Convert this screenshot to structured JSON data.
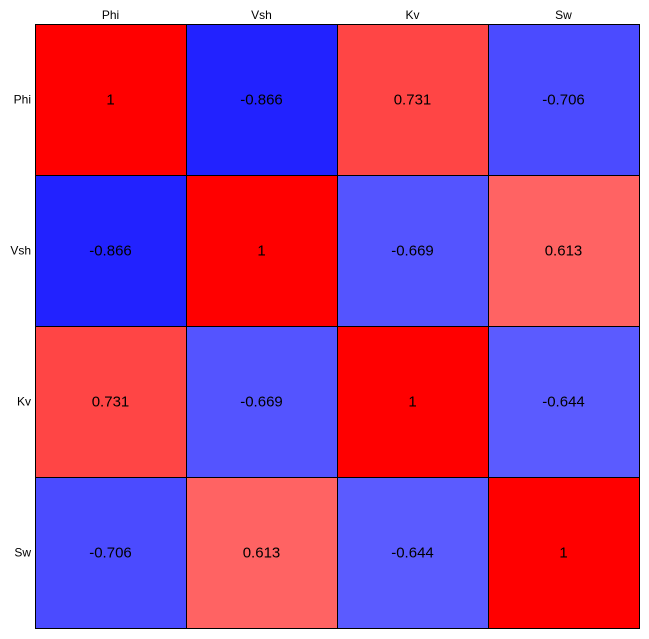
{
  "chart_data": {
    "type": "heatmap",
    "title": "",
    "x_labels": [
      "Phi",
      "Vsh",
      "Kv",
      "Sw"
    ],
    "y_labels": [
      "Phi",
      "Vsh",
      "Kv",
      "Sw"
    ],
    "values": [
      [
        1,
        -0.866,
        0.731,
        -0.706
      ],
      [
        -0.866,
        1,
        -0.669,
        0.613
      ],
      [
        0.731,
        -0.669,
        1,
        -0.644
      ],
      [
        -0.706,
        0.613,
        -0.644,
        1
      ]
    ],
    "value_labels": [
      [
        "1",
        "-0.866",
        "0.731",
        "-0.706"
      ],
      [
        "-0.866",
        "1",
        "-0.669",
        "0.613"
      ],
      [
        "0.731",
        "-0.669",
        "1",
        "-0.644"
      ],
      [
        "-0.706",
        "0.613",
        "-0.644",
        "1"
      ]
    ],
    "colorscale": {
      "negative": "#0000ff",
      "positive": "#ff0000",
      "neutral": "#ffffff"
    },
    "value_range": [
      -1,
      1
    ],
    "x_label_position": "top",
    "y_label_position": "left",
    "grid": true
  }
}
